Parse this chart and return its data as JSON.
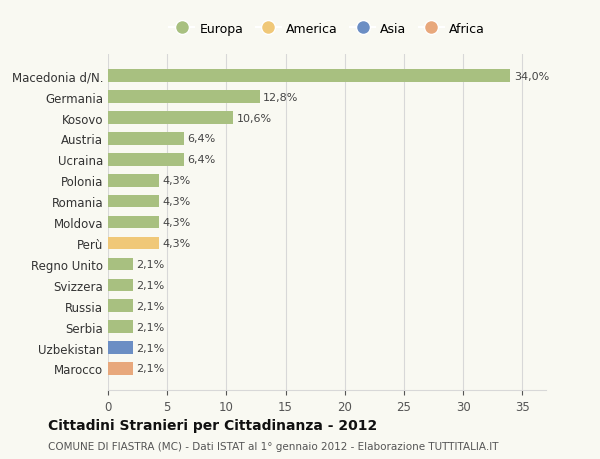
{
  "categories": [
    "Marocco",
    "Uzbekistan",
    "Serbia",
    "Russia",
    "Svizzera",
    "Regno Unito",
    "Perù",
    "Moldova",
    "Romania",
    "Polonia",
    "Ucraina",
    "Austria",
    "Kosovo",
    "Germania",
    "Macedonia d/N."
  ],
  "values": [
    2.1,
    2.1,
    2.1,
    2.1,
    2.1,
    2.1,
    4.3,
    4.3,
    4.3,
    4.3,
    6.4,
    6.4,
    10.6,
    12.8,
    34.0
  ],
  "labels": [
    "2,1%",
    "2,1%",
    "2,1%",
    "2,1%",
    "2,1%",
    "2,1%",
    "4,3%",
    "4,3%",
    "4,3%",
    "4,3%",
    "6,4%",
    "6,4%",
    "10,6%",
    "12,8%",
    "34,0%"
  ],
  "colors": [
    "#e8a87c",
    "#6b8ec4",
    "#a8c080",
    "#a8c080",
    "#a8c080",
    "#a8c080",
    "#f0c878",
    "#a8c080",
    "#a8c080",
    "#a8c080",
    "#a8c080",
    "#a8c080",
    "#a8c080",
    "#a8c080",
    "#a8c080"
  ],
  "legend_labels": [
    "Europa",
    "America",
    "Asia",
    "Africa"
  ],
  "legend_colors": [
    "#a8c080",
    "#f0c878",
    "#6b8ec4",
    "#e8a87c"
  ],
  "title": "Cittadini Stranieri per Cittadinanza - 2012",
  "subtitle": "COMUNE DI FIASTRA (MC) - Dati ISTAT al 1° gennaio 2012 - Elaborazione TUTTITALIA.IT",
  "xlim": [
    0,
    37
  ],
  "xticks": [
    0,
    5,
    10,
    15,
    20,
    25,
    30,
    35
  ],
  "background_color": "#f9f9f2",
  "grid_color": "#d8d8d8",
  "bar_height": 0.6
}
